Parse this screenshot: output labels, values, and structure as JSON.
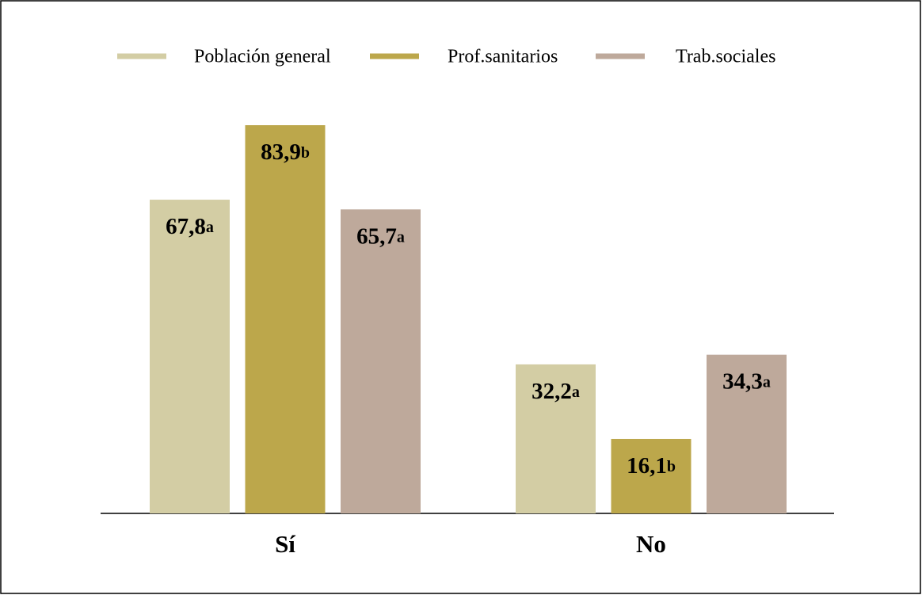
{
  "chart_data": {
    "type": "bar",
    "categories": [
      "Sí",
      "No"
    ],
    "series": [
      {
        "name": "Población general",
        "color": "#d3cda4",
        "values": [
          67.8,
          32.2
        ],
        "value_labels": [
          "67,8",
          "32,2"
        ],
        "letters": [
          "a",
          "a"
        ]
      },
      {
        "name": "Prof.sanitarios",
        "color": "#bca74b",
        "values": [
          83.9,
          16.1
        ],
        "value_labels": [
          "83,9",
          "16,1"
        ],
        "letters": [
          "b",
          "b"
        ]
      },
      {
        "name": "Trab.sociales",
        "color": "#bea99b",
        "values": [
          65.7,
          34.3
        ],
        "value_labels": [
          "65,7",
          "34,3"
        ],
        "letters": [
          "a",
          "a"
        ]
      }
    ],
    "legend": "top"
  }
}
